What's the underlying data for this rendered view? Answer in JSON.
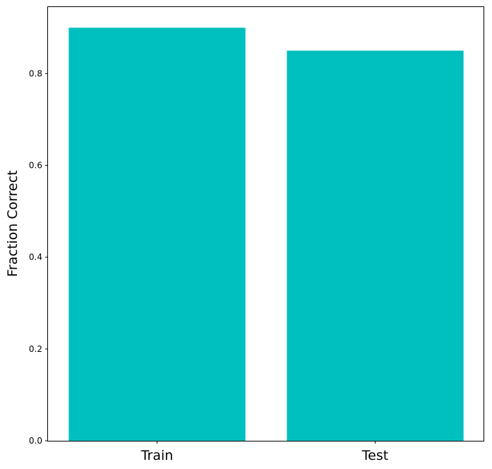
{
  "chart_data": {
    "type": "bar",
    "categories": [
      "Train",
      "Test"
    ],
    "values": [
      0.9,
      0.85
    ],
    "ylabel": "Fraction Correct",
    "ylim": [
      0,
      0.945
    ],
    "yticks": [
      "0.0",
      "0.2",
      "0.4",
      "0.6",
      "0.8"
    ],
    "bar_color": "#00bfbf",
    "grid": false
  }
}
